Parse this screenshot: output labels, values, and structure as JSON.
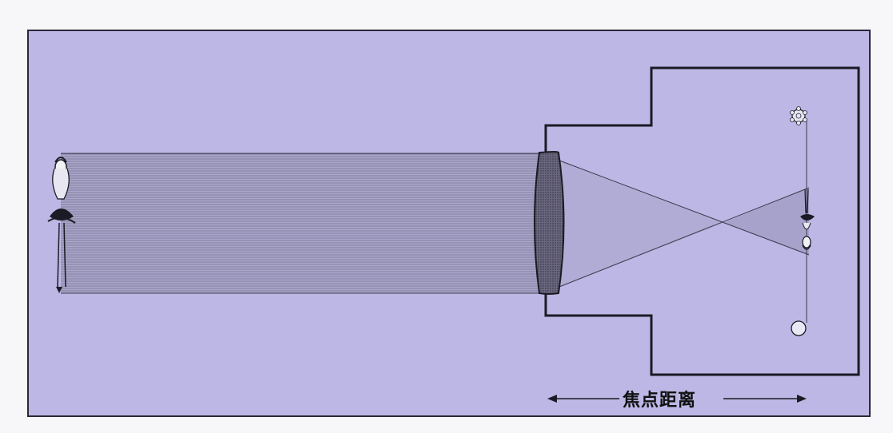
{
  "diagram": {
    "focal_distance_label": "焦点距离",
    "colors": {
      "panel": "#bcb7e4",
      "line": "#1c1a24",
      "beam": "#8f8ca0"
    },
    "icons": {
      "subject": "ballerina-icon",
      "lens": "convex-lens-icon",
      "image": "inverted-ballerina-icon",
      "top_dot": "flower-icon",
      "bottom_dot": "circle-icon"
    }
  }
}
